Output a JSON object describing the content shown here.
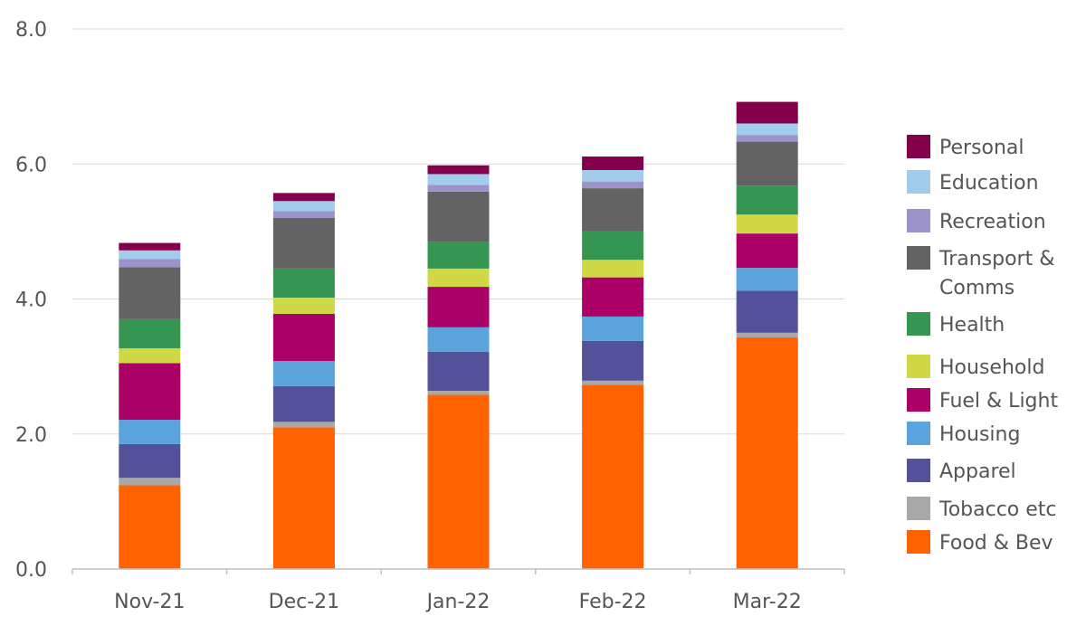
{
  "chart_data": {
    "type": "bar",
    "stacked": true,
    "categories": [
      "Nov-21",
      "Dec-21",
      "Jan-22",
      "Feb-22",
      "Mar-22"
    ],
    "ylim": [
      0,
      8
    ],
    "yticks": [
      "0.0",
      "2.0",
      "4.0",
      "6.0",
      "8.0"
    ],
    "grid": true,
    "legend_position": "right",
    "series": [
      {
        "name": "Food & Bev",
        "color": "#FF6200",
        "values": [
          1.24,
          2.1,
          2.58,
          2.73,
          3.43
        ]
      },
      {
        "name": "Tobacco etc",
        "color": "#A8A8A8",
        "values": [
          0.11,
          0.08,
          0.06,
          0.06,
          0.07
        ]
      },
      {
        "name": "Apparel",
        "color": "#525199",
        "values": [
          0.5,
          0.53,
          0.58,
          0.59,
          0.62
        ]
      },
      {
        "name": "Housing",
        "color": "#5BA3DC",
        "values": [
          0.36,
          0.37,
          0.36,
          0.36,
          0.34
        ]
      },
      {
        "name": "Fuel & Light",
        "color": "#AB0066",
        "values": [
          0.84,
          0.7,
          0.6,
          0.58,
          0.51
        ]
      },
      {
        "name": "Household",
        "color": "#D0D945",
        "values": [
          0.22,
          0.24,
          0.27,
          0.26,
          0.28
        ]
      },
      {
        "name": "Health",
        "color": "#349651",
        "values": [
          0.43,
          0.43,
          0.4,
          0.42,
          0.43
        ]
      },
      {
        "name": "Transport & Comms",
        "color": "#636363",
        "values": [
          0.77,
          0.75,
          0.74,
          0.64,
          0.65
        ]
      },
      {
        "name": "Recreation",
        "color": "#9B93C9",
        "values": [
          0.12,
          0.1,
          0.1,
          0.1,
          0.1
        ]
      },
      {
        "name": "Education",
        "color": "#A2CCEC",
        "values": [
          0.13,
          0.15,
          0.16,
          0.17,
          0.17
        ]
      },
      {
        "name": "Personal",
        "color": "#85004B",
        "values": [
          0.11,
          0.12,
          0.13,
          0.2,
          0.32
        ]
      }
    ]
  },
  "legend_items": [
    {
      "name": "Personal",
      "color": "#85004B"
    },
    {
      "name": "Education",
      "color": "#A2CCEC"
    },
    {
      "name": "Recreation",
      "color": "#9B93C9"
    },
    {
      "name": "Transport &\nComms",
      "color": "#636363"
    },
    {
      "name": "Health",
      "color": "#349651"
    },
    {
      "name": "Household",
      "color": "#D0D945"
    },
    {
      "name": "Fuel & Light",
      "color": "#AB0066"
    },
    {
      "name": "Housing",
      "color": "#5BA3DC"
    },
    {
      "name": "Apparel",
      "color": "#525199"
    },
    {
      "name": "Tobacco etc",
      "color": "#A8A8A8"
    },
    {
      "name": "Food & Bev",
      "color": "#FF6200"
    }
  ]
}
